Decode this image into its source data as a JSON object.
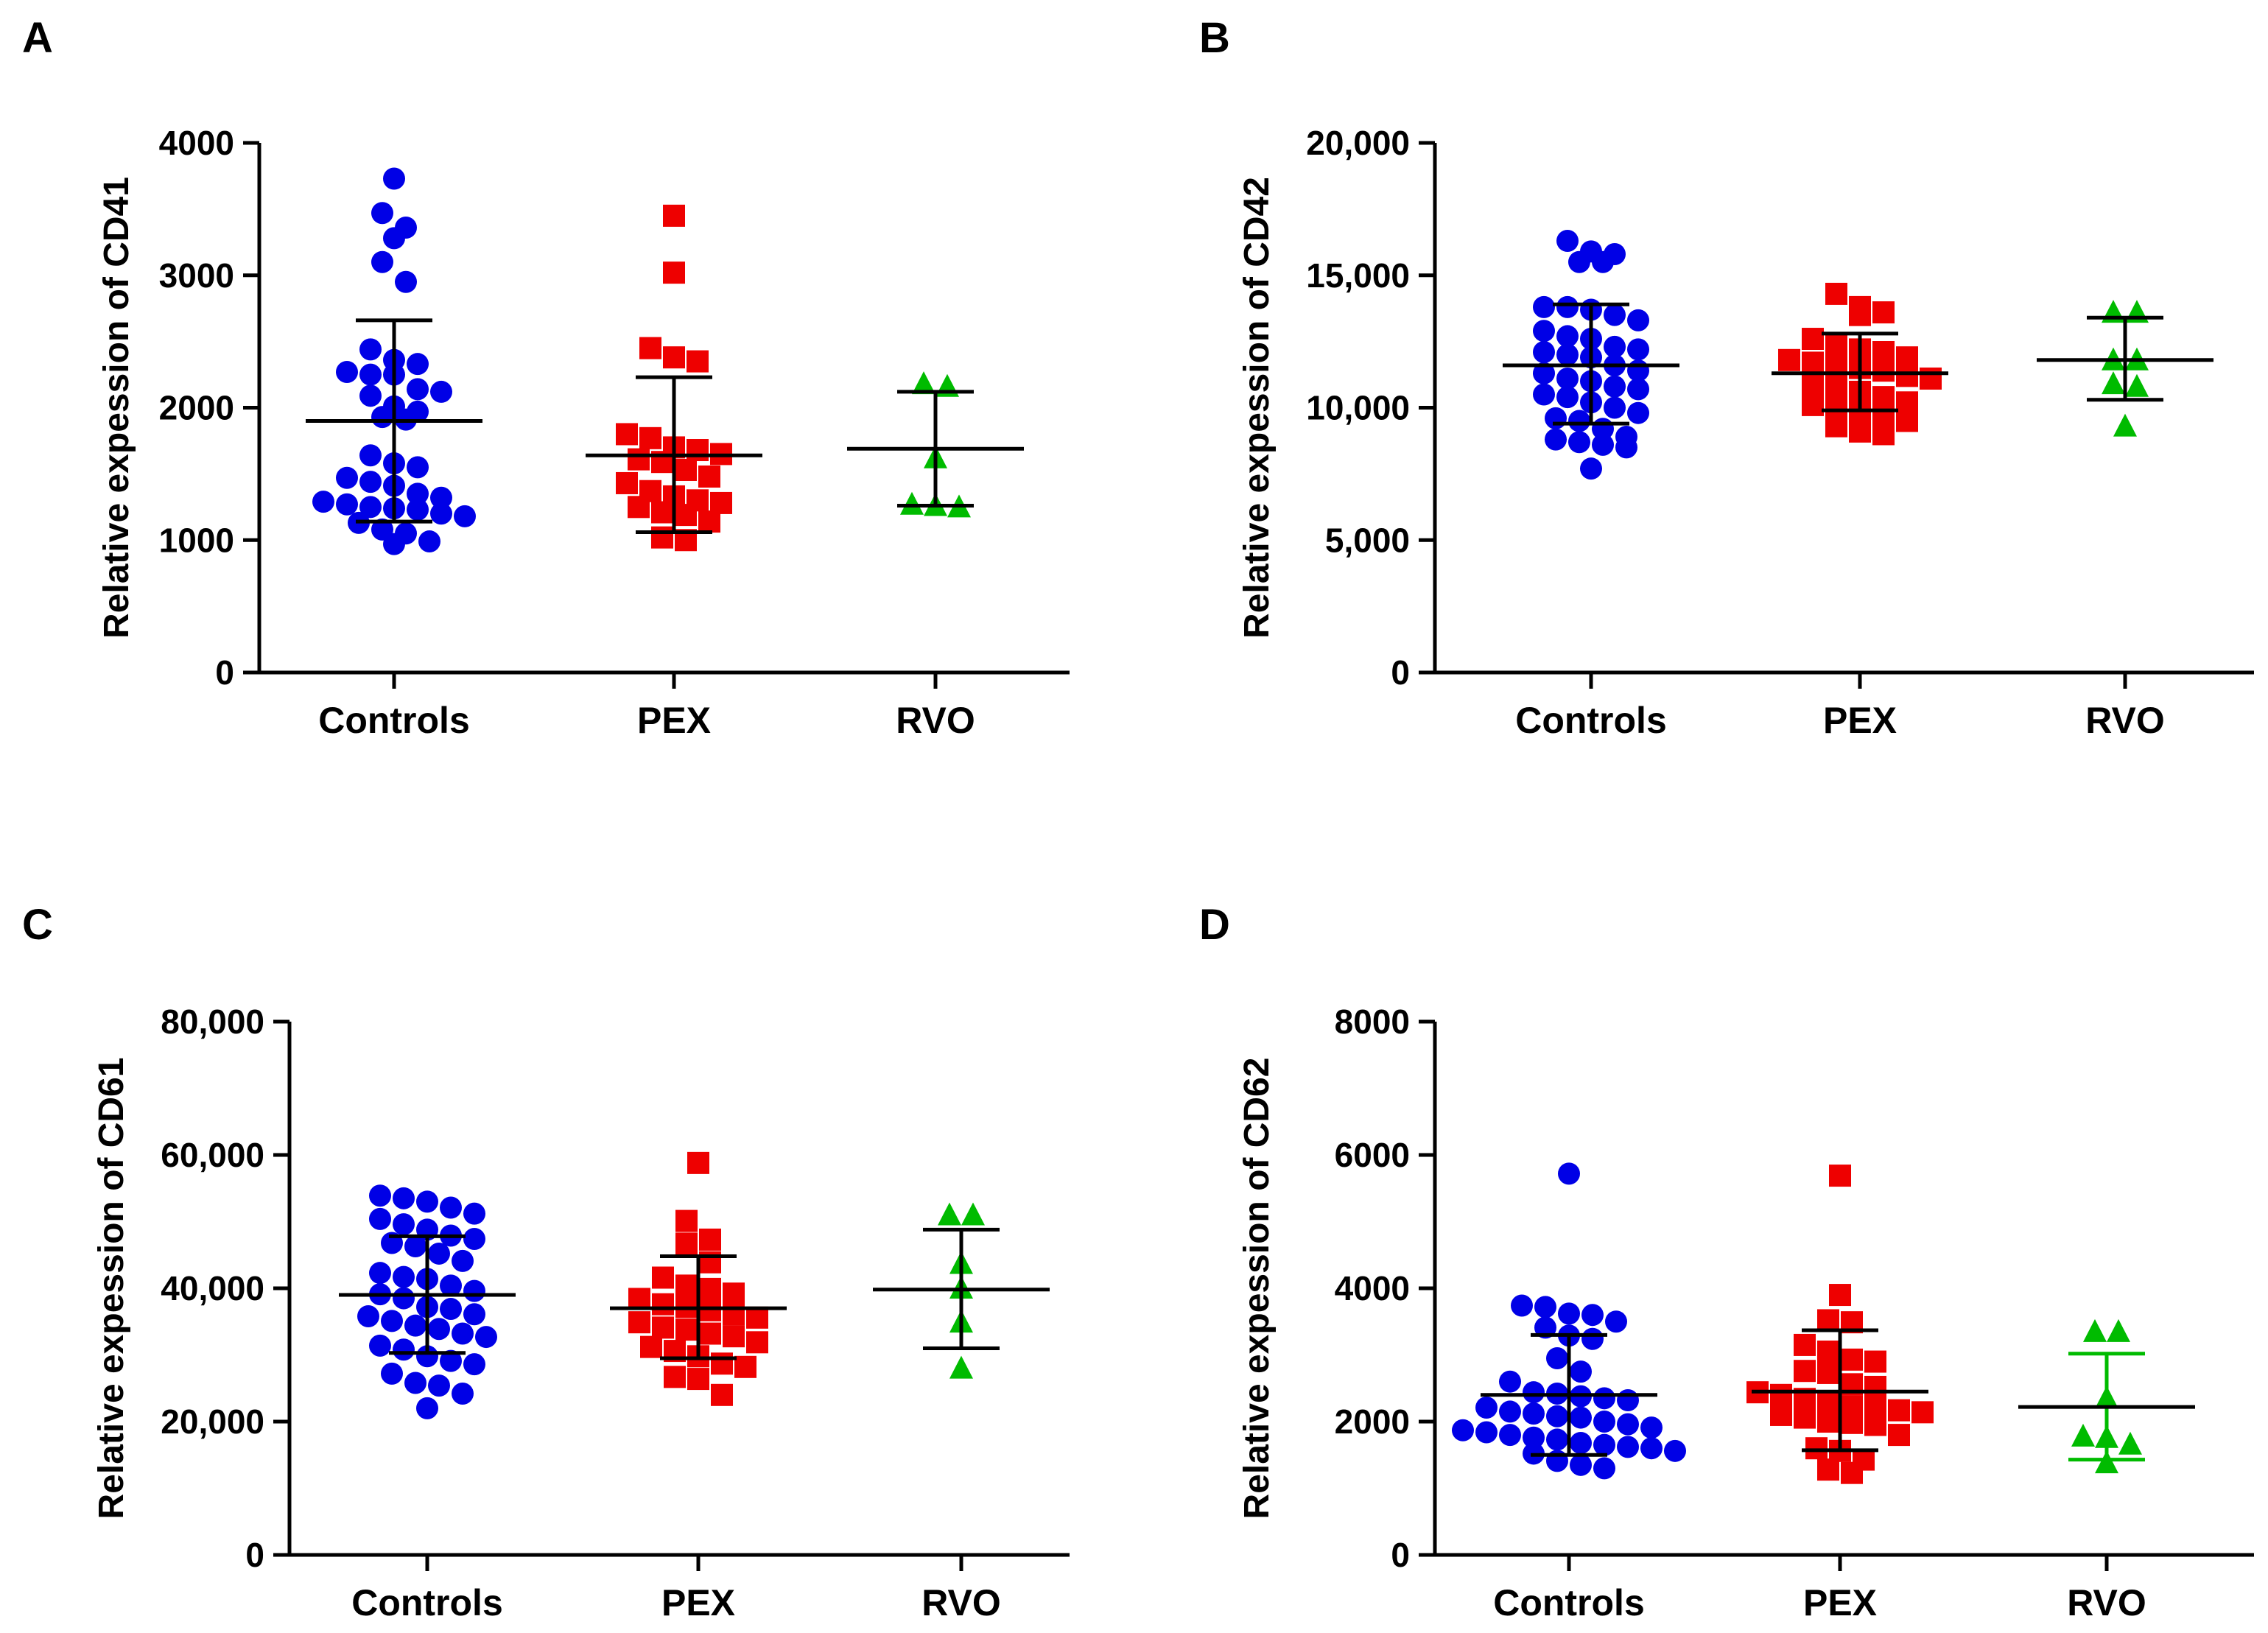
{
  "figure": {
    "panels": [
      "A",
      "B",
      "C",
      "D"
    ]
  },
  "colors": {
    "controls": "#0000e6",
    "pex": "#ee0000",
    "rvo": "#00bb00",
    "axis": "#000000"
  },
  "chart_data": [
    {
      "type": "scatter",
      "panel": "A",
      "ylabel": "Relative expession of CD41",
      "ylim": [
        0,
        4000
      ],
      "yticks": [
        0,
        1000,
        2000,
        3000,
        4000
      ],
      "ytick_labels": [
        "0",
        "1000",
        "2000",
        "3000",
        "4000"
      ],
      "categories": [
        "Controls",
        "PEX",
        "RVO"
      ],
      "series": [
        {
          "name": "Controls",
          "marker": "circle",
          "mean": 1900,
          "sd_upper": 2660,
          "sd_lower": 1140,
          "values": [
            3730,
            3470,
            3360,
            3280,
            3100,
            2950,
            2440,
            2360,
            2330,
            2270,
            2250,
            2250,
            2140,
            2120,
            2090,
            2010,
            1970,
            1930,
            1910,
            1640,
            1580,
            1550,
            1470,
            1440,
            1410,
            1350,
            1320,
            1290,
            1270,
            1250,
            1240,
            1230,
            1200,
            1180,
            1130,
            1080,
            1050,
            990,
            970
          ]
        },
        {
          "name": "PEX",
          "marker": "square",
          "mean": 1640,
          "sd_upper": 2230,
          "sd_lower": 1060,
          "values": [
            3450,
            3020,
            2450,
            2380,
            2350,
            1800,
            1770,
            1700,
            1680,
            1650,
            1610,
            1590,
            1530,
            1480,
            1430,
            1370,
            1330,
            1300,
            1280,
            1250,
            1210,
            1190,
            1140,
            1020,
            1000
          ]
        },
        {
          "name": "RVO",
          "marker": "triangle",
          "mean": 1690,
          "sd_upper": 2120,
          "sd_lower": 1260,
          "values": [
            2180,
            2160,
            1620,
            1270,
            1260,
            1250
          ]
        }
      ]
    },
    {
      "type": "scatter",
      "panel": "B",
      "ylabel": "Relative expession of CD42",
      "ylim": [
        0,
        20000
      ],
      "yticks": [
        0,
        5000,
        10000,
        15000,
        20000
      ],
      "ytick_labels": [
        "0",
        "5,000",
        "10,000",
        "15,000",
        "20,000"
      ],
      "categories": [
        "Controls",
        "PEX",
        "RVO"
      ],
      "series": [
        {
          "name": "Controls",
          "marker": "circle",
          "mean": 11600,
          "sd_upper": 13900,
          "sd_lower": 9400,
          "values": [
            16300,
            15900,
            15800,
            15500,
            15500,
            13800,
            13800,
            13700,
            13500,
            13300,
            12900,
            12700,
            12600,
            12300,
            12200,
            12100,
            12000,
            11900,
            11600,
            11400,
            11300,
            11100,
            11000,
            10800,
            10700,
            10500,
            10400,
            10200,
            10000,
            9800,
            9600,
            9500,
            9200,
            8900,
            8800,
            8700,
            8600,
            8500,
            7700
          ]
        },
        {
          "name": "PEX",
          "marker": "square",
          "mean": 11300,
          "sd_upper": 12800,
          "sd_lower": 9900,
          "values": [
            14300,
            13800,
            13600,
            13500,
            12600,
            12400,
            12200,
            12100,
            11900,
            11800,
            11700,
            11600,
            11500,
            11400,
            11200,
            11100,
            10900,
            10800,
            10600,
            10400,
            10200,
            10100,
            10000,
            9900,
            9800,
            9500,
            9300,
            9100,
            9000
          ]
        },
        {
          "name": "RVO",
          "marker": "triangle",
          "mean": 11800,
          "sd_upper": 13400,
          "sd_lower": 10300,
          "values": [
            13600,
            13600,
            11800,
            11800,
            10900,
            10800,
            9300
          ]
        }
      ]
    },
    {
      "type": "scatter",
      "panel": "C",
      "ylabel": "Relative expession of CD61",
      "ylim": [
        0,
        80000
      ],
      "yticks": [
        0,
        20000,
        40000,
        60000,
        80000
      ],
      "ytick_labels": [
        "0",
        "20,000",
        "40,000",
        "60,000",
        "80,000"
      ],
      "categories": [
        "Controls",
        "PEX",
        "RVO"
      ],
      "series": [
        {
          "name": "Controls",
          "marker": "circle",
          "mean": 39000,
          "sd_upper": 47800,
          "sd_lower": 30300,
          "values": [
            53900,
            53500,
            53000,
            52100,
            51200,
            50400,
            49600,
            48800,
            47900,
            47400,
            46800,
            46300,
            45200,
            44100,
            42300,
            41700,
            41400,
            40400,
            39600,
            39100,
            38500,
            37200,
            36900,
            36100,
            35800,
            35100,
            34400,
            33900,
            33200,
            32700,
            31400,
            30800,
            29800,
            29100,
            28600,
            27200,
            25800,
            25400,
            24200,
            22000
          ]
        },
        {
          "name": "PEX",
          "marker": "square",
          "mean": 37000,
          "sd_upper": 44800,
          "sd_lower": 29500,
          "values": [
            58800,
            50100,
            47300,
            46700,
            43900,
            41600,
            40400,
            39900,
            39200,
            38400,
            37600,
            37200,
            36700,
            36100,
            35600,
            34900,
            34100,
            33800,
            33200,
            32800,
            31900,
            31200,
            30600,
            29800,
            28700,
            28200,
            26700,
            26400,
            24000
          ]
        },
        {
          "name": "RVO",
          "marker": "triangle",
          "mean": 39800,
          "sd_upper": 48800,
          "sd_lower": 31000,
          "values": [
            51000,
            51000,
            43700,
            40000,
            34900,
            28000
          ]
        }
      ]
    },
    {
      "type": "scatter",
      "panel": "D",
      "ylabel": "Relative expession of CD62",
      "ylim": [
        0,
        8000
      ],
      "yticks": [
        0,
        2000,
        4000,
        6000,
        8000
      ],
      "ytick_labels": [
        "0",
        "2000",
        "4000",
        "6000",
        "8000"
      ],
      "categories": [
        "Controls",
        "PEX",
        "RVO"
      ],
      "series": [
        {
          "name": "Controls",
          "marker": "circle",
          "mean": 2400,
          "sd_upper": 3300,
          "sd_lower": 1500,
          "values": [
            5720,
            3740,
            3720,
            3620,
            3600,
            3500,
            3410,
            3290,
            3240,
            2950,
            2750,
            2600,
            2440,
            2420,
            2380,
            2350,
            2320,
            2210,
            2150,
            2120,
            2080,
            2060,
            2000,
            1960,
            1910,
            1870,
            1840,
            1800,
            1760,
            1730,
            1680,
            1650,
            1620,
            1600,
            1560,
            1520,
            1410,
            1350,
            1300
          ]
        },
        {
          "name": "PEX",
          "marker": "square",
          "mean": 2450,
          "sd_upper": 3370,
          "sd_lower": 1570,
          "values": [
            5690,
            3900,
            3520,
            3490,
            3150,
            3050,
            2930,
            2900,
            2760,
            2730,
            2560,
            2520,
            2440,
            2400,
            2340,
            2290,
            2230,
            2200,
            2170,
            2140,
            2100,
            2060,
            2000,
            1980,
            1950,
            1800,
            1600,
            1560,
            1430,
            1280,
            1230
          ]
        },
        {
          "name": "RVO",
          "marker": "triangle",
          "mean": 2220,
          "sd_upper": 3020,
          "sd_lower": 1430,
          "values": [
            3350,
            3350,
            2350,
            1780,
            1760,
            1660,
            1380
          ]
        }
      ]
    }
  ]
}
